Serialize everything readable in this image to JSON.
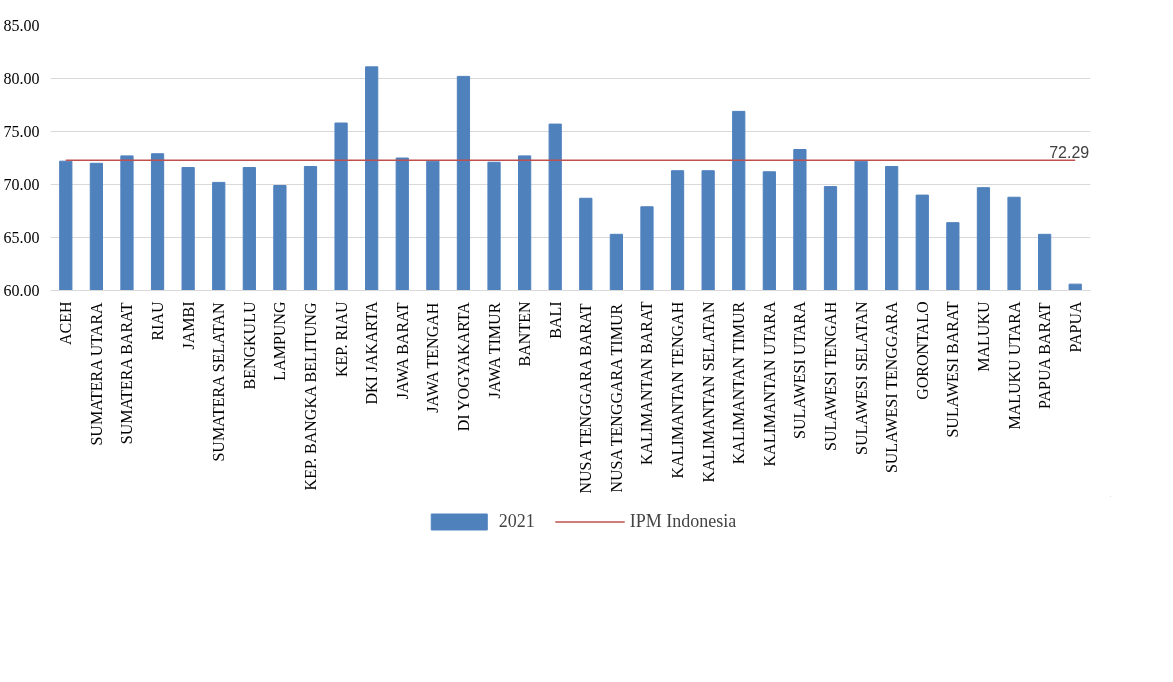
{
  "chart_data": {
    "type": "bar",
    "categories": [
      "ACEH",
      "SUMATERA UTARA",
      "SUMATERA BARAT",
      "RIAU",
      "JAMBI",
      "SUMATERA SELATAN",
      "BENGKULU",
      "LAMPUNG",
      "KEP. BANGKA BELITUNG",
      "KEP. RIAU",
      "DKI JAKARTA",
      "JAWA BARAT",
      "JAWA TENGAH",
      "DI YOGYAKARTA",
      "JAWA TIMUR",
      "BANTEN",
      "BALI",
      "NUSA TENGGARA BARAT",
      "NUSA TENGGARA TIMUR",
      "KALIMANTAN BARAT",
      "KALIMANTAN TENGAH",
      "KALIMANTAN SELATAN",
      "KALIMANTAN TIMUR",
      "KALIMANTAN UTARA",
      "SULAWESI UTARA",
      "SULAWESI TENGAH",
      "SULAWESI SELATAN",
      "SULAWESI TENGGARA",
      "GORONTALO",
      "SULAWESI BARAT",
      "MALUKU",
      "MALUKU UTARA",
      "PAPUA BARAT",
      "PAPUA"
    ],
    "series": [
      {
        "name": "2021",
        "color": "#4f81bd",
        "values": [
          72.2,
          72.0,
          72.7,
          72.9,
          71.6,
          70.2,
          71.6,
          69.9,
          71.7,
          75.8,
          81.1,
          72.5,
          72.2,
          80.2,
          72.1,
          72.7,
          75.7,
          68.7,
          65.3,
          67.9,
          71.3,
          71.3,
          76.9,
          71.2,
          73.3,
          69.8,
          72.2,
          71.7,
          69.0,
          66.4,
          69.7,
          68.8,
          65.3,
          60.6
        ]
      },
      {
        "name": "IPM Indonesia",
        "type": "line",
        "color": "#c0504d",
        "values": [
          72.29,
          72.29,
          72.29,
          72.29,
          72.29,
          72.29,
          72.29,
          72.29,
          72.29,
          72.29,
          72.29,
          72.29,
          72.29,
          72.29,
          72.29,
          72.29,
          72.29,
          72.29,
          72.29,
          72.29,
          72.29,
          72.29,
          72.29,
          72.29,
          72.29,
          72.29,
          72.29,
          72.29,
          72.29,
          72.29,
          72.29,
          72.29,
          72.29,
          72.29
        ],
        "value_labels": [
          null,
          null,
          null,
          null,
          null,
          null,
          null,
          null,
          null,
          null,
          null,
          null,
          null,
          null,
          null,
          null,
          null,
          null,
          null,
          null,
          null,
          null,
          null,
          null,
          null,
          null,
          null,
          null,
          null,
          null,
          null,
          null,
          null,
          "72.29"
        ]
      }
    ],
    "ylim": [
      60,
      85
    ],
    "yticks": [
      {
        "value": 60,
        "label": "60.00"
      },
      {
        "value": 65,
        "label": "65.00"
      },
      {
        "value": 70,
        "label": "70.00"
      },
      {
        "value": 75,
        "label": "75.00"
      },
      {
        "value": 80,
        "label": "80.00"
      },
      {
        "value": 85,
        "label": "85.00"
      }
    ],
    "grid": "y",
    "legend": "bottom",
    "marker": "none",
    "line_style": "solid"
  }
}
